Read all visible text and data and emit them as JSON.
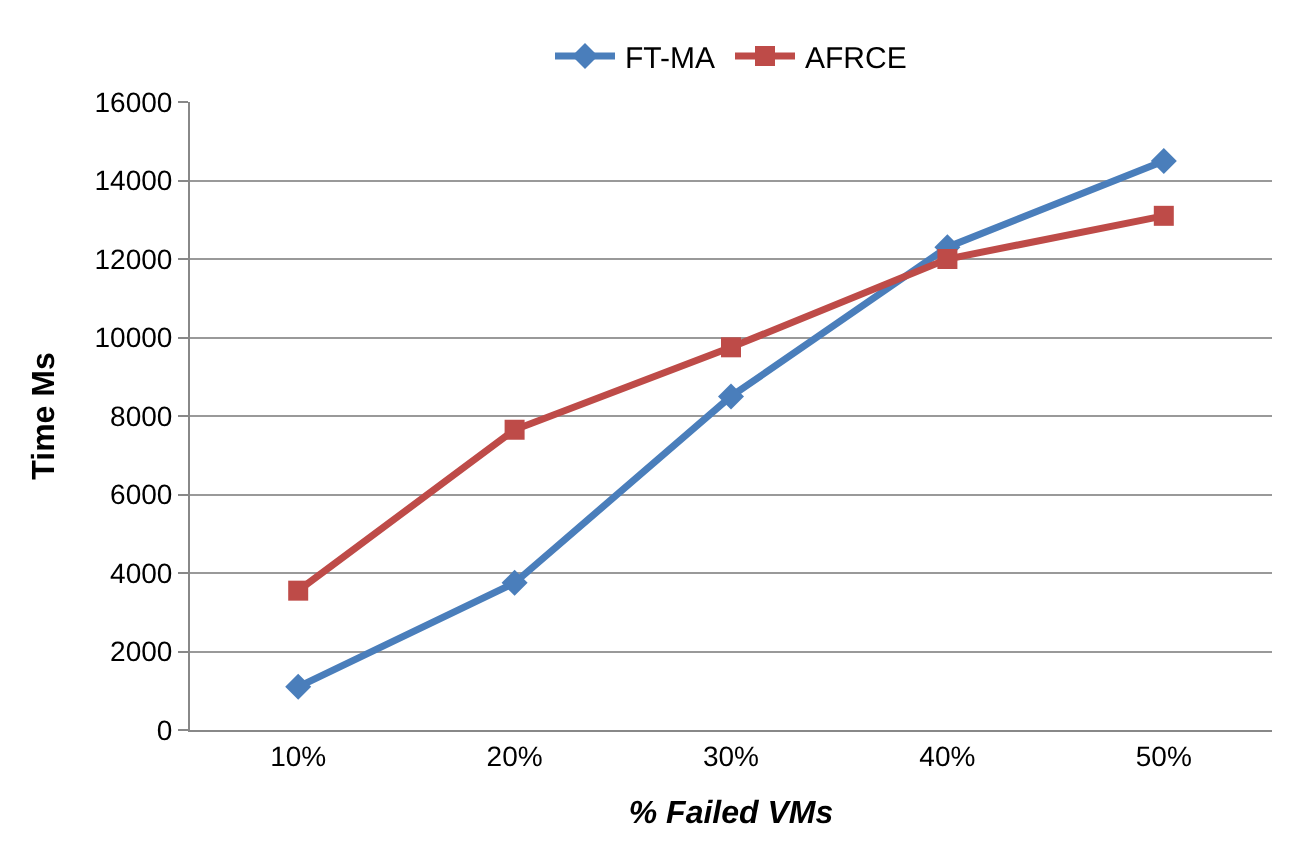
{
  "chart_data": {
    "type": "line",
    "xlabel": "% Failed VMs",
    "ylabel": "Time Ms",
    "categories": [
      "10%",
      "20%",
      "30%",
      "40%",
      "50%"
    ],
    "series": [
      {
        "name": "FT-MA",
        "color": "#4a7ebb",
        "marker": "diamond",
        "values": [
          1100,
          3750,
          8500,
          12300,
          14500
        ]
      },
      {
        "name": "AFRCE",
        "color": "#be4b48",
        "marker": "square",
        "values": [
          3550,
          7650,
          9750,
          12000,
          13100
        ]
      }
    ],
    "ylim": [
      0,
      16000
    ],
    "yticks": [
      0,
      2000,
      4000,
      6000,
      8000,
      10000,
      12000,
      14000,
      16000
    ],
    "grid": "y",
    "legend": "top",
    "line_style": "solid"
  }
}
